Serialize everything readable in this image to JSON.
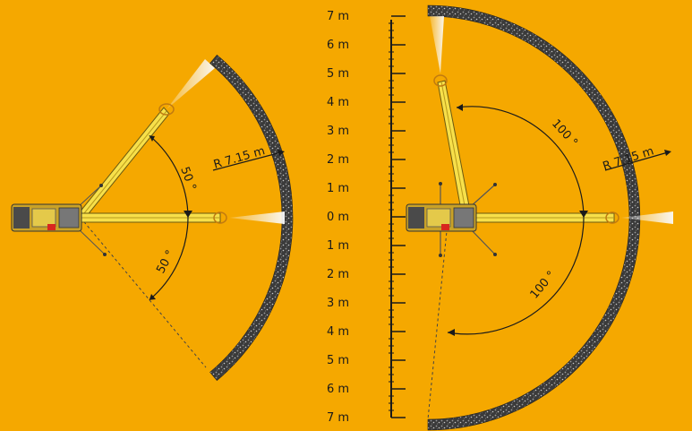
{
  "colors": {
    "background": "#f5a800",
    "ground": "#3a3a3a",
    "boom": "#f7e04a",
    "crane_body": "#c9a227",
    "ink": "#1a1a1a",
    "light": "#d8d8d8"
  },
  "left_diagram": {
    "radius_label": "R 7.15 m",
    "angle_upper_label": "50 °",
    "angle_lower_label": "50 °"
  },
  "right_diagram": {
    "radius_label": "R 7.15 m",
    "angle_upper_label": "100 °",
    "angle_lower_label": "100 °"
  },
  "scale": {
    "labels": [
      "7 m",
      "6 m",
      "5 m",
      "4 m",
      "3 m",
      "2 m",
      "1 m",
      "0 m",
      "1 m",
      "2 m",
      "3 m",
      "4 m",
      "5 m",
      "6 m",
      "7 m"
    ]
  }
}
